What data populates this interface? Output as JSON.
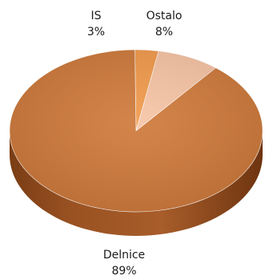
{
  "chart_data": {
    "type": "pie",
    "three_d": true,
    "legend": "none",
    "slices": [
      {
        "label": "Delnice",
        "value": 89,
        "value_label": "89%",
        "color": "#cf7a3b"
      },
      {
        "label": "IS",
        "value": 3,
        "value_label": "3%",
        "color": "#f19a4c"
      },
      {
        "label": "Ostalo",
        "value": 8,
        "value_label": "8%",
        "color": "#f7c4a5"
      }
    ]
  }
}
